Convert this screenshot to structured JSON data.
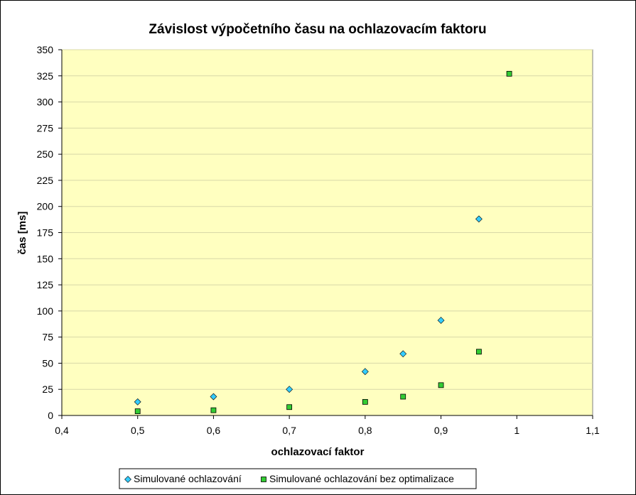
{
  "chart_data": {
    "type": "scatter",
    "title": "Závislost výpočetního času na ochlazovacím faktoru",
    "xlabel": "ochlazovací faktor",
    "ylabel": "čas [ms]",
    "xlim": [
      0.4,
      1.1
    ],
    "ylim": [
      0,
      350
    ],
    "x_ticks": [
      {
        "value": 0.4,
        "label": "0,4"
      },
      {
        "value": 0.5,
        "label": "0,5"
      },
      {
        "value": 0.6,
        "label": "0,6"
      },
      {
        "value": 0.7,
        "label": "0,7"
      },
      {
        "value": 0.8,
        "label": "0,8"
      },
      {
        "value": 0.9,
        "label": "0,9"
      },
      {
        "value": 1.0,
        "label": "1"
      },
      {
        "value": 1.1,
        "label": "1,1"
      }
    ],
    "y_ticks": [
      {
        "value": 0,
        "label": "0"
      },
      {
        "value": 25,
        "label": "25"
      },
      {
        "value": 50,
        "label": "50"
      },
      {
        "value": 75,
        "label": "75"
      },
      {
        "value": 100,
        "label": "100"
      },
      {
        "value": 125,
        "label": "125"
      },
      {
        "value": 150,
        "label": "150"
      },
      {
        "value": 175,
        "label": "175"
      },
      {
        "value": 200,
        "label": "200"
      },
      {
        "value": 225,
        "label": "225"
      },
      {
        "value": 250,
        "label": "250"
      },
      {
        "value": 275,
        "label": "275"
      },
      {
        "value": 300,
        "label": "300"
      },
      {
        "value": 325,
        "label": "325"
      },
      {
        "value": 350,
        "label": "350"
      }
    ],
    "grid": "horizontal",
    "legend_position": "bottom",
    "plot_background": "#FFFFC0",
    "gridline_color": "#D8D8A8",
    "series": [
      {
        "name": "Simulované ochlazování",
        "marker": "diamond",
        "color": "#33CCFF",
        "points": [
          {
            "x": 0.5,
            "y": 13
          },
          {
            "x": 0.6,
            "y": 18
          },
          {
            "x": 0.7,
            "y": 25
          },
          {
            "x": 0.8,
            "y": 42
          },
          {
            "x": 0.85,
            "y": 59
          },
          {
            "x": 0.9,
            "y": 91
          },
          {
            "x": 0.95,
            "y": 188
          }
        ]
      },
      {
        "name": "Simulované ochlazování bez optimalizace",
        "marker": "square",
        "color": "#33CC33",
        "points": [
          {
            "x": 0.5,
            "y": 4
          },
          {
            "x": 0.6,
            "y": 5
          },
          {
            "x": 0.7,
            "y": 8
          },
          {
            "x": 0.8,
            "y": 13
          },
          {
            "x": 0.85,
            "y": 18
          },
          {
            "x": 0.9,
            "y": 29
          },
          {
            "x": 0.95,
            "y": 61
          },
          {
            "x": 0.99,
            "y": 327
          }
        ]
      }
    ]
  }
}
